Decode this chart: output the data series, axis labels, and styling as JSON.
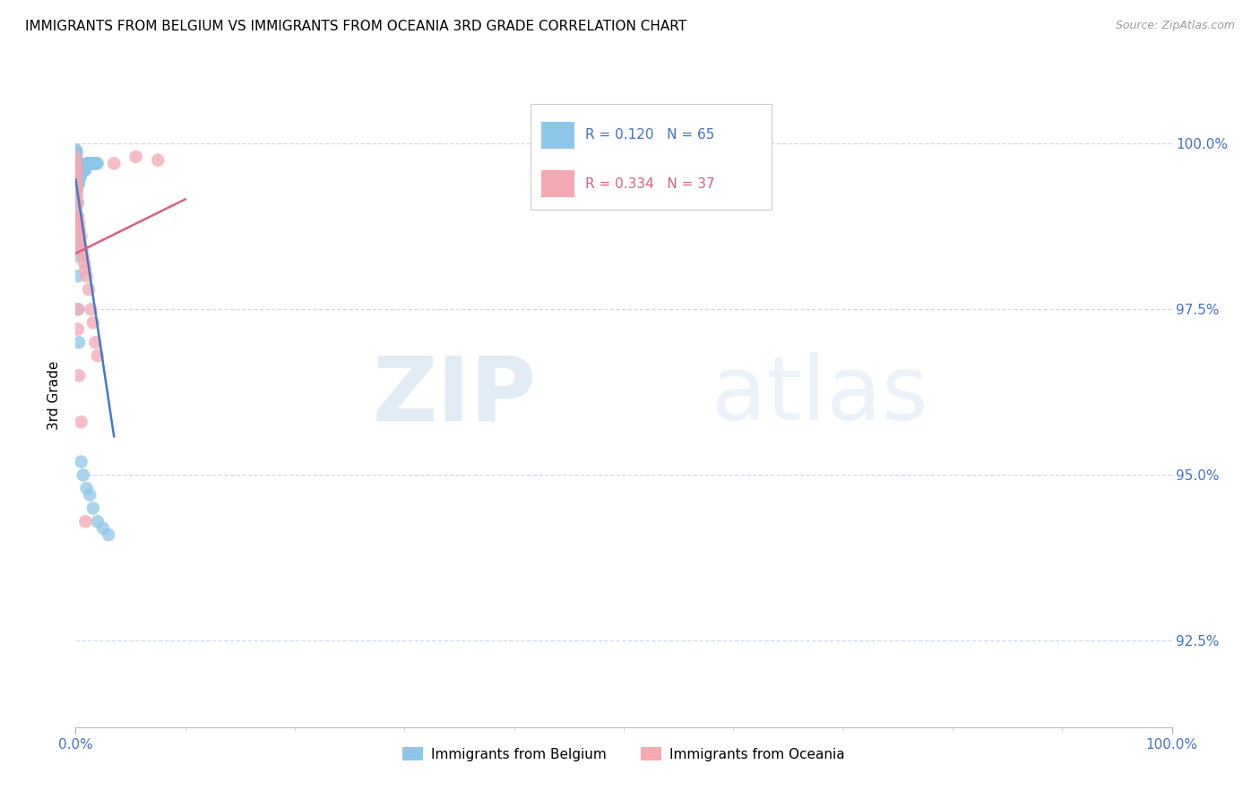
{
  "title": "IMMIGRANTS FROM BELGIUM VS IMMIGRANTS FROM OCEANIA 3RD GRADE CORRELATION CHART",
  "source": "Source: ZipAtlas.com",
  "ylabel": "3rd Grade",
  "ylabel_right_ticks": [
    92.5,
    95.0,
    97.5,
    100.0
  ],
  "ylabel_right_labels": [
    "92.5%",
    "95.0%",
    "97.5%",
    "100.0%"
  ],
  "xlim": [
    0.0,
    100.0
  ],
  "ylim": [
    91.2,
    101.2
  ],
  "belgium_color": "#8ec6e8",
  "oceania_color": "#f4a8b0",
  "belgium_line_color": "#3d7cc9",
  "oceania_line_color": "#d96080",
  "r_belgium": 0.12,
  "n_belgium": 65,
  "r_oceania": 0.334,
  "n_oceania": 37,
  "belgium_x": [
    0.0,
    0.0,
    0.0,
    0.0,
    0.0,
    0.05,
    0.05,
    0.05,
    0.05,
    0.1,
    0.1,
    0.1,
    0.1,
    0.1,
    0.1,
    0.15,
    0.15,
    0.15,
    0.15,
    0.2,
    0.2,
    0.2,
    0.25,
    0.25,
    0.3,
    0.3,
    0.35,
    0.4,
    0.45,
    0.5,
    0.6,
    0.7,
    0.8,
    0.9,
    1.0,
    1.1,
    1.2,
    1.3,
    1.4,
    1.5,
    1.6,
    1.7,
    1.8,
    1.9,
    2.0,
    0.0,
    0.0,
    0.0,
    0.05,
    0.05,
    0.1,
    0.1,
    0.15,
    0.15,
    0.2,
    0.25,
    0.3,
    0.5,
    0.7,
    1.0,
    1.3,
    1.6,
    2.0,
    2.5,
    3.0
  ],
  "belgium_y": [
    99.9,
    99.85,
    99.8,
    99.75,
    99.7,
    99.9,
    99.8,
    99.7,
    99.6,
    99.85,
    99.75,
    99.65,
    99.55,
    99.45,
    99.35,
    99.7,
    99.6,
    99.5,
    99.4,
    99.6,
    99.5,
    99.4,
    99.5,
    99.4,
    99.5,
    99.4,
    99.5,
    99.5,
    99.5,
    99.6,
    99.6,
    99.6,
    99.6,
    99.6,
    99.7,
    99.7,
    99.7,
    99.7,
    99.7,
    99.7,
    99.7,
    99.7,
    99.7,
    99.7,
    99.7,
    99.3,
    99.2,
    99.1,
    99.1,
    99.0,
    98.8,
    98.6,
    98.5,
    98.3,
    98.0,
    97.5,
    97.0,
    95.2,
    95.0,
    94.8,
    94.7,
    94.5,
    94.3,
    94.2,
    94.1
  ],
  "oceania_x": [
    0.0,
    0.0,
    0.05,
    0.05,
    0.05,
    0.1,
    0.1,
    0.1,
    0.15,
    0.15,
    0.15,
    0.2,
    0.2,
    0.25,
    0.25,
    0.3,
    0.35,
    0.4,
    0.5,
    0.6,
    0.7,
    0.8,
    0.9,
    1.0,
    1.2,
    1.4,
    1.6,
    1.8,
    2.0,
    3.5,
    5.5,
    7.5,
    0.15,
    0.2,
    0.3,
    0.5,
    0.9
  ],
  "oceania_y": [
    99.8,
    99.6,
    99.7,
    99.5,
    99.3,
    99.6,
    99.4,
    99.2,
    99.3,
    99.1,
    98.9,
    99.1,
    98.8,
    98.9,
    98.7,
    98.8,
    98.7,
    98.5,
    98.6,
    98.4,
    98.3,
    98.2,
    98.1,
    98.0,
    97.8,
    97.5,
    97.3,
    97.0,
    96.8,
    99.7,
    99.8,
    99.75,
    97.5,
    97.2,
    96.5,
    95.8,
    94.3
  ],
  "watermark_zip": "ZIP",
  "watermark_atlas": "atlas",
  "grid_color": "#d0d8e8",
  "tick_color": "#4472c4",
  "background_color": "#ffffff"
}
